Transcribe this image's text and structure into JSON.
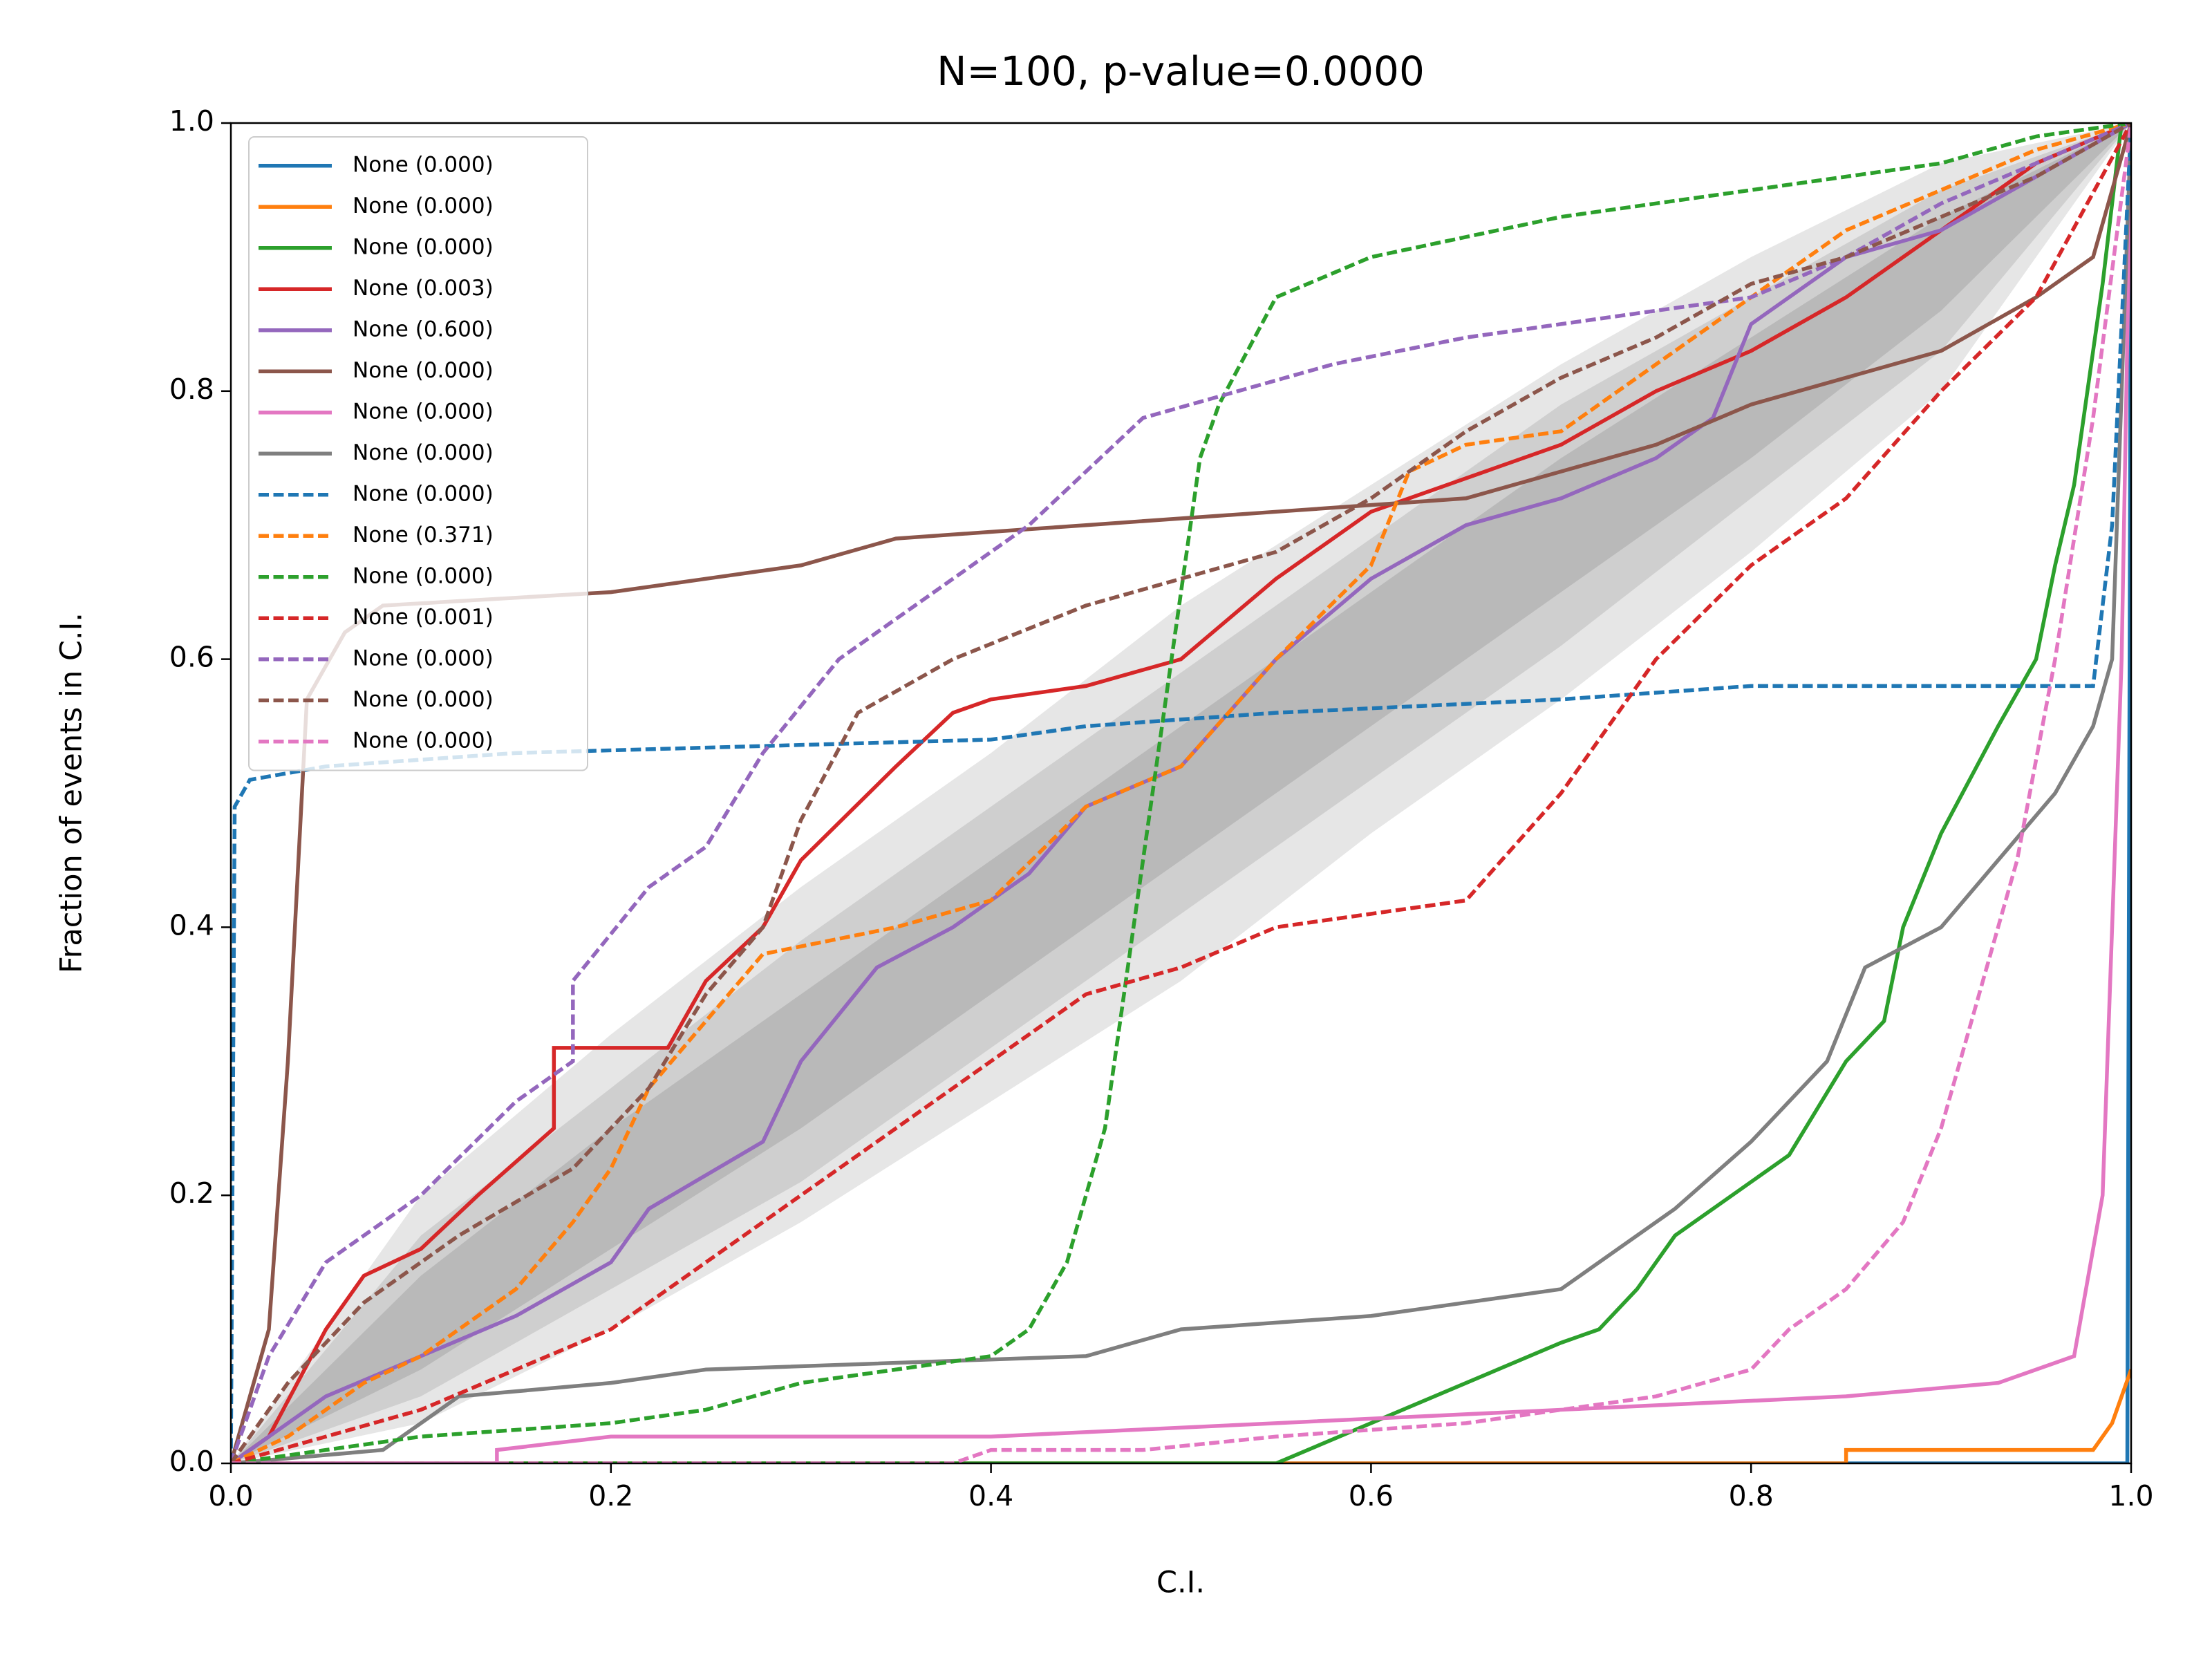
{
  "chart_data": {
    "type": "line",
    "title": "N=100, p-value=0.0000",
    "xlabel": "C.I.",
    "ylabel": "Fraction of events in C.I.",
    "xlim": [
      0,
      1
    ],
    "ylim": [
      0,
      1
    ],
    "xticks": [
      {
        "value": 0,
        "label": "0.0"
      },
      0.2,
      0.4,
      0.6,
      0.8,
      {
        "value": 1,
        "label": "1.0"
      }
    ],
    "yticks": [
      {
        "value": 0,
        "label": "0.0"
      },
      0.2,
      0.4,
      0.6,
      0.8,
      {
        "value": 1,
        "label": "1.0"
      }
    ],
    "legend": "upper left",
    "band_x": [
      0,
      0.1,
      0.2,
      0.3,
      0.4,
      0.5,
      0.6,
      0.7,
      0.8,
      0.9,
      1
    ],
    "bands": [
      {
        "color": "#e6e6e6",
        "lower": [
          0,
          0.03,
          0.1,
          0.18,
          0.27,
          0.36,
          0.47,
          0.57,
          0.68,
          0.8,
          1
        ],
        "upper": [
          0,
          0.2,
          0.32,
          0.43,
          0.53,
          0.64,
          0.73,
          0.82,
          0.9,
          0.97,
          1
        ]
      },
      {
        "color": "#cfcfcf",
        "lower": [
          0,
          0.05,
          0.13,
          0.21,
          0.31,
          0.41,
          0.51,
          0.61,
          0.72,
          0.83,
          1
        ],
        "upper": [
          0,
          0.17,
          0.28,
          0.39,
          0.49,
          0.59,
          0.69,
          0.79,
          0.87,
          0.95,
          1
        ]
      },
      {
        "color": "#b9b9b9",
        "lower": [
          0,
          0.07,
          0.16,
          0.25,
          0.35,
          0.45,
          0.55,
          0.65,
          0.75,
          0.86,
          1
        ],
        "upper": [
          0,
          0.14,
          0.25,
          0.35,
          0.45,
          0.55,
          0.65,
          0.75,
          0.84,
          0.93,
          1
        ]
      }
    ],
    "series": [
      {
        "name": "None (0.000)",
        "color": "#1f77b4",
        "linestyle": "solid",
        "x": [
          0,
          0.998,
          1
        ],
        "values": [
          0,
          0,
          1
        ]
      },
      {
        "name": "None (0.000)",
        "color": "#ff7f0e",
        "linestyle": "solid",
        "x": [
          0,
          0.85,
          0.85,
          0.98,
          0.99,
          1
        ],
        "values": [
          0,
          0,
          0.01,
          0.01,
          0.03,
          0.07
        ]
      },
      {
        "name": "None (0.000)",
        "color": "#2ca02c",
        "linestyle": "solid",
        "x": [
          0,
          0.55,
          0.6,
          0.65,
          0.7,
          0.72,
          0.74,
          0.76,
          0.78,
          0.82,
          0.85,
          0.87,
          0.88,
          0.9,
          0.93,
          0.95,
          0.96,
          0.97,
          0.985,
          0.995
        ],
        "values": [
          0,
          0,
          0.03,
          0.06,
          0.09,
          0.1,
          0.13,
          0.17,
          0.19,
          0.23,
          0.3,
          0.33,
          0.4,
          0.47,
          0.55,
          0.6,
          0.67,
          0.73,
          0.88,
          1
        ]
      },
      {
        "name": "None (0.003)",
        "color": "#d62728",
        "linestyle": "solid",
        "x": [
          0,
          0.02,
          0.05,
          0.07,
          0.1,
          0.13,
          0.17,
          0.17,
          0.23,
          0.25,
          0.28,
          0.3,
          0.35,
          0.38,
          0.4,
          0.45,
          0.5,
          0.55,
          0.6,
          0.7,
          0.75,
          0.8,
          0.85,
          0.9,
          0.95,
          1
        ],
        "values": [
          0,
          0.02,
          0.1,
          0.14,
          0.16,
          0.2,
          0.25,
          0.31,
          0.31,
          0.36,
          0.4,
          0.45,
          0.52,
          0.56,
          0.57,
          0.58,
          0.6,
          0.66,
          0.71,
          0.76,
          0.8,
          0.83,
          0.87,
          0.92,
          0.97,
          1
        ]
      },
      {
        "name": "None (0.600)",
        "color": "#9467bd",
        "linestyle": "solid",
        "x": [
          0,
          0.05,
          0.1,
          0.15,
          0.2,
          0.22,
          0.28,
          0.3,
          0.34,
          0.38,
          0.42,
          0.45,
          0.5,
          0.55,
          0.6,
          0.65,
          0.7,
          0.75,
          0.78,
          0.8,
          0.85,
          0.9,
          0.95,
          1
        ],
        "values": [
          0,
          0.05,
          0.08,
          0.11,
          0.15,
          0.19,
          0.24,
          0.3,
          0.37,
          0.4,
          0.44,
          0.49,
          0.52,
          0.6,
          0.66,
          0.7,
          0.72,
          0.75,
          0.78,
          0.85,
          0.9,
          0.92,
          0.96,
          1
        ]
      },
      {
        "name": "None (0.000)",
        "color": "#8c564b",
        "linestyle": "solid",
        "x": [
          0,
          0.02,
          0.03,
          0.04,
          0.06,
          0.08,
          0.2,
          0.3,
          0.35,
          0.45,
          0.55,
          0.65,
          0.7,
          0.75,
          0.8,
          0.85,
          0.9,
          0.95,
          0.98,
          1
        ],
        "values": [
          0,
          0.1,
          0.3,
          0.57,
          0.62,
          0.64,
          0.65,
          0.67,
          0.69,
          0.7,
          0.71,
          0.72,
          0.74,
          0.76,
          0.79,
          0.81,
          0.83,
          0.87,
          0.9,
          1
        ]
      },
      {
        "name": "None (0.000)",
        "color": "#e377c2",
        "linestyle": "solid",
        "x": [
          0,
          0.14,
          0.14,
          0.2,
          0.4,
          0.55,
          0.7,
          0.85,
          0.93,
          0.97,
          0.985,
          0.995,
          1
        ],
        "values": [
          0,
          0,
          0.01,
          0.02,
          0.02,
          0.03,
          0.04,
          0.05,
          0.06,
          0.08,
          0.2,
          0.6,
          1
        ]
      },
      {
        "name": "None (0.000)",
        "color": "#7f7f7f",
        "linestyle": "solid",
        "x": [
          0,
          0.08,
          0.1,
          0.12,
          0.2,
          0.25,
          0.45,
          0.5,
          0.6,
          0.65,
          0.7,
          0.73,
          0.76,
          0.8,
          0.84,
          0.86,
          0.9,
          0.93,
          0.96,
          0.98,
          0.99,
          1
        ],
        "values": [
          0,
          0.01,
          0.03,
          0.05,
          0.06,
          0.07,
          0.08,
          0.1,
          0.11,
          0.12,
          0.13,
          0.16,
          0.19,
          0.24,
          0.3,
          0.37,
          0.4,
          0.45,
          0.5,
          0.55,
          0.6,
          1
        ]
      },
      {
        "name": "None (0.000)",
        "color": "#1f77b4",
        "linestyle": "dashed",
        "x": [
          0,
          0.002,
          0.01,
          0.05,
          0.15,
          0.4,
          0.45,
          0.55,
          0.7,
          0.8,
          0.98,
          0.99,
          1
        ],
        "values": [
          0,
          0.49,
          0.51,
          0.52,
          0.53,
          0.54,
          0.55,
          0.56,
          0.57,
          0.58,
          0.58,
          0.7,
          1
        ]
      },
      {
        "name": "None (0.371)",
        "color": "#ff7f0e",
        "linestyle": "dashed",
        "x": [
          0,
          0.03,
          0.07,
          0.1,
          0.15,
          0.18,
          0.2,
          0.22,
          0.25,
          0.28,
          0.35,
          0.4,
          0.45,
          0.5,
          0.55,
          0.6,
          0.62,
          0.65,
          0.7,
          0.75,
          0.8,
          0.85,
          0.9,
          0.95,
          1
        ],
        "values": [
          0,
          0.02,
          0.06,
          0.08,
          0.13,
          0.18,
          0.22,
          0.28,
          0.33,
          0.38,
          0.4,
          0.42,
          0.49,
          0.52,
          0.6,
          0.67,
          0.74,
          0.76,
          0.77,
          0.82,
          0.87,
          0.92,
          0.95,
          0.98,
          1
        ]
      },
      {
        "name": "None (0.000)",
        "color": "#2ca02c",
        "linestyle": "dashed",
        "x": [
          0,
          0.05,
          0.1,
          0.2,
          0.25,
          0.3,
          0.35,
          0.4,
          0.42,
          0.44,
          0.46,
          0.47,
          0.48,
          0.49,
          0.5,
          0.51,
          0.52,
          0.55,
          0.6,
          0.7,
          0.8,
          0.9,
          0.95,
          1
        ],
        "values": [
          0,
          0.01,
          0.02,
          0.03,
          0.04,
          0.06,
          0.07,
          0.08,
          0.1,
          0.15,
          0.25,
          0.35,
          0.45,
          0.55,
          0.65,
          0.75,
          0.79,
          0.87,
          0.9,
          0.93,
          0.95,
          0.97,
          0.99,
          1
        ]
      },
      {
        "name": "None (0.001)",
        "color": "#d62728",
        "linestyle": "dashed",
        "x": [
          0,
          0.05,
          0.1,
          0.15,
          0.2,
          0.25,
          0.3,
          0.35,
          0.4,
          0.45,
          0.5,
          0.55,
          0.65,
          0.7,
          0.75,
          0.8,
          0.85,
          0.9,
          0.95,
          1
        ],
        "values": [
          0,
          0.02,
          0.04,
          0.07,
          0.1,
          0.15,
          0.2,
          0.25,
          0.3,
          0.35,
          0.37,
          0.4,
          0.42,
          0.5,
          0.6,
          0.67,
          0.72,
          0.8,
          0.87,
          1
        ]
      },
      {
        "name": "None (0.000)",
        "color": "#9467bd",
        "linestyle": "dashed",
        "x": [
          0,
          0.02,
          0.05,
          0.1,
          0.15,
          0.18,
          0.18,
          0.22,
          0.25,
          0.28,
          0.32,
          0.38,
          0.42,
          0.45,
          0.48,
          0.53,
          0.58,
          0.65,
          0.75,
          0.8,
          0.85,
          0.9,
          0.95,
          1
        ],
        "values": [
          0,
          0.08,
          0.15,
          0.2,
          0.27,
          0.3,
          0.36,
          0.43,
          0.46,
          0.53,
          0.6,
          0.66,
          0.7,
          0.74,
          0.78,
          0.8,
          0.82,
          0.84,
          0.86,
          0.87,
          0.9,
          0.94,
          0.97,
          1
        ]
      },
      {
        "name": "None (0.000)",
        "color": "#8c564b",
        "linestyle": "dashed",
        "x": [
          0,
          0.03,
          0.07,
          0.12,
          0.18,
          0.22,
          0.25,
          0.28,
          0.3,
          0.33,
          0.38,
          0.45,
          0.55,
          0.6,
          0.65,
          0.7,
          0.75,
          0.8,
          0.85,
          0.9,
          0.95,
          1
        ],
        "values": [
          0,
          0.06,
          0.12,
          0.17,
          0.22,
          0.28,
          0.35,
          0.4,
          0.48,
          0.56,
          0.6,
          0.64,
          0.68,
          0.72,
          0.77,
          0.81,
          0.84,
          0.88,
          0.9,
          0.93,
          0.96,
          1
        ]
      },
      {
        "name": "None (0.000)",
        "color": "#e377c2",
        "linestyle": "dashed",
        "x": [
          0,
          0.38,
          0.4,
          0.48,
          0.55,
          0.65,
          0.7,
          0.75,
          0.8,
          0.82,
          0.85,
          0.88,
          0.9,
          0.92,
          0.94,
          0.96,
          0.98,
          1
        ],
        "values": [
          0,
          0,
          0.01,
          0.01,
          0.02,
          0.03,
          0.04,
          0.05,
          0.07,
          0.1,
          0.13,
          0.18,
          0.25,
          0.35,
          0.45,
          0.6,
          0.78,
          1
        ]
      }
    ]
  }
}
